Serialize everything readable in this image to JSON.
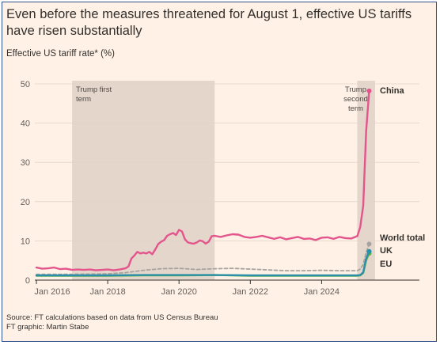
{
  "title": "Even before the measures threatened for August 1, effective US tariffs have risen substantially",
  "subtitle": "Effective US tariff rate* (%)",
  "source_line": "Source: FT calculations based on data from US Census Bureau",
  "credit_line": "FT graphic: Martin Stabe",
  "chart_data": {
    "type": "line",
    "title": "Even before the measures threatened for August 1, effective US tariffs have risen substantially",
    "ylabel": "Effective US tariff rate* (%)",
    "ylim": [
      0,
      50
    ],
    "xlim": [
      "2016-01",
      "2025-07"
    ],
    "yticks": [
      "0",
      "10",
      "20",
      "30",
      "40",
      "50"
    ],
    "xticks": [
      "Jan 2016",
      "Jan 2018",
      "Jan 2020",
      "Jan 2022",
      "Jan 2024"
    ],
    "grid": "horizontal",
    "shaded_periods": [
      {
        "label_lines": [
          "Trump first",
          "term"
        ],
        "start": "2017-01",
        "end": "2021-01"
      },
      {
        "label_lines": [
          "Trump",
          "second",
          "term"
        ],
        "start": "2025-01",
        "end": "2025-07"
      }
    ],
    "series": [
      {
        "name": "China",
        "color": "#e3558c",
        "style": "solid",
        "points": [
          [
            "2016-01",
            3.2
          ],
          [
            "2016-03",
            2.9
          ],
          [
            "2016-05",
            3.0
          ],
          [
            "2016-07",
            3.2
          ],
          [
            "2016-09",
            2.8
          ],
          [
            "2016-11",
            2.9
          ],
          [
            "2017-01",
            2.6
          ],
          [
            "2017-03",
            2.7
          ],
          [
            "2017-05",
            2.6
          ],
          [
            "2017-07",
            2.7
          ],
          [
            "2017-09",
            2.5
          ],
          [
            "2017-11",
            2.6
          ],
          [
            "2018-01",
            2.7
          ],
          [
            "2018-03",
            2.5
          ],
          [
            "2018-05",
            2.7
          ],
          [
            "2018-07",
            3.0
          ],
          [
            "2018-08",
            3.5
          ],
          [
            "2018-09",
            5.5
          ],
          [
            "2018-10",
            6.3
          ],
          [
            "2018-11",
            7.2
          ],
          [
            "2018-12",
            6.8
          ],
          [
            "2019-01",
            7.0
          ],
          [
            "2019-02",
            6.8
          ],
          [
            "2019-03",
            7.2
          ],
          [
            "2019-04",
            6.6
          ],
          [
            "2019-05",
            7.8
          ],
          [
            "2019-06",
            9.2
          ],
          [
            "2019-07",
            9.8
          ],
          [
            "2019-08",
            10.2
          ],
          [
            "2019-09",
            11.3
          ],
          [
            "2019-10",
            11.7
          ],
          [
            "2019-11",
            12.0
          ],
          [
            "2019-12",
            11.5
          ],
          [
            "2020-01",
            12.8
          ],
          [
            "2020-02",
            12.4
          ],
          [
            "2020-03",
            10.4
          ],
          [
            "2020-04",
            9.6
          ],
          [
            "2020-05",
            9.4
          ],
          [
            "2020-06",
            9.3
          ],
          [
            "2020-07",
            9.6
          ],
          [
            "2020-08",
            10.1
          ],
          [
            "2020-09",
            9.9
          ],
          [
            "2020-10",
            9.3
          ],
          [
            "2020-11",
            9.8
          ],
          [
            "2020-12",
            11.2
          ],
          [
            "2021-01",
            11.3
          ],
          [
            "2021-03",
            11.0
          ],
          [
            "2021-05",
            11.4
          ],
          [
            "2021-07",
            11.7
          ],
          [
            "2021-09",
            11.6
          ],
          [
            "2021-11",
            11.0
          ],
          [
            "2022-01",
            10.8
          ],
          [
            "2022-03",
            11.0
          ],
          [
            "2022-05",
            11.3
          ],
          [
            "2022-07",
            10.9
          ],
          [
            "2022-09",
            10.5
          ],
          [
            "2022-11",
            10.9
          ],
          [
            "2023-01",
            10.4
          ],
          [
            "2023-03",
            10.7
          ],
          [
            "2023-05",
            11.0
          ],
          [
            "2023-07",
            10.5
          ],
          [
            "2023-09",
            10.6
          ],
          [
            "2023-11",
            10.2
          ],
          [
            "2024-01",
            10.8
          ],
          [
            "2024-03",
            10.9
          ],
          [
            "2024-05",
            10.5
          ],
          [
            "2024-07",
            11.0
          ],
          [
            "2024-09",
            10.7
          ],
          [
            "2024-11",
            10.6
          ],
          [
            "2025-01",
            11.2
          ],
          [
            "2025-02",
            13.5
          ],
          [
            "2025-03",
            19.0
          ],
          [
            "2025-04",
            38.0
          ],
          [
            "2025-05",
            48.2
          ]
        ]
      },
      {
        "name": "World total",
        "color": "#a7a3a0",
        "style": "dashed",
        "points": [
          [
            "2016-01",
            1.5
          ],
          [
            "2017-01",
            1.5
          ],
          [
            "2018-01",
            1.6
          ],
          [
            "2018-07",
            1.9
          ],
          [
            "2019-01",
            2.5
          ],
          [
            "2019-07",
            2.9
          ],
          [
            "2020-01",
            3.0
          ],
          [
            "2020-07",
            2.7
          ],
          [
            "2021-01",
            2.9
          ],
          [
            "2021-07",
            3.0
          ],
          [
            "2022-01",
            2.8
          ],
          [
            "2022-07",
            2.6
          ],
          [
            "2023-01",
            2.4
          ],
          [
            "2023-07",
            2.4
          ],
          [
            "2024-01",
            2.5
          ],
          [
            "2024-07",
            2.4
          ],
          [
            "2025-01",
            2.4
          ],
          [
            "2025-02",
            2.8
          ],
          [
            "2025-03",
            4.0
          ],
          [
            "2025-04",
            7.0
          ],
          [
            "2025-05",
            9.2
          ]
        ]
      },
      {
        "name": "UK",
        "color": "#2a8fa8",
        "style": "solid",
        "points": [
          [
            "2016-01",
            1.2
          ],
          [
            "2017-01",
            1.2
          ],
          [
            "2018-01",
            1.2
          ],
          [
            "2019-01",
            1.3
          ],
          [
            "2020-01",
            1.3
          ],
          [
            "2021-01",
            1.3
          ],
          [
            "2022-01",
            1.2
          ],
          [
            "2023-01",
            1.2
          ],
          [
            "2024-01",
            1.2
          ],
          [
            "2025-01",
            1.2
          ],
          [
            "2025-02",
            1.3
          ],
          [
            "2025-03",
            2.0
          ],
          [
            "2025-04",
            5.5
          ],
          [
            "2025-05",
            7.3
          ]
        ]
      },
      {
        "name": "EU",
        "color": "#68b345",
        "style": "solid",
        "points": [
          [
            "2016-01",
            1.1
          ],
          [
            "2017-01",
            1.1
          ],
          [
            "2018-01",
            1.1
          ],
          [
            "2019-01",
            1.2
          ],
          [
            "2020-01",
            1.2
          ],
          [
            "2021-01",
            1.3
          ],
          [
            "2022-01",
            1.1
          ],
          [
            "2023-01",
            1.1
          ],
          [
            "2024-01",
            1.1
          ],
          [
            "2025-01",
            1.1
          ],
          [
            "2025-02",
            1.2
          ],
          [
            "2025-03",
            1.8
          ],
          [
            "2025-04",
            5.0
          ],
          [
            "2025-05",
            6.8
          ]
        ]
      }
    ]
  }
}
